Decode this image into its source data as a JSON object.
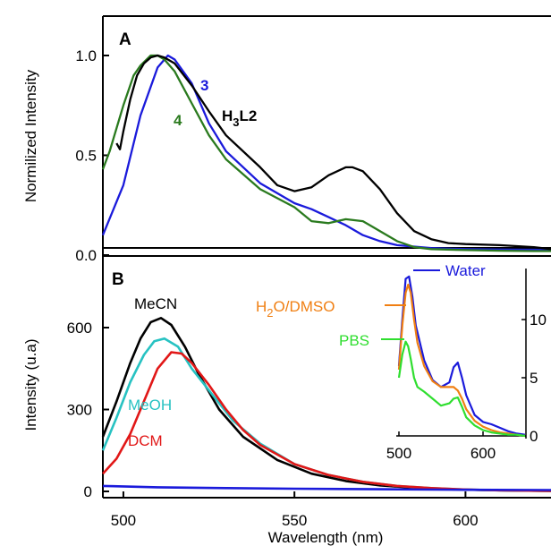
{
  "chart_data": [
    {
      "panel": "A",
      "type": "line",
      "xlabel": "",
      "ylabel": "Normilized Intensity",
      "xlim": [
        494,
        625
      ],
      "ylim": [
        0,
        1.1
      ],
      "yticks": [
        "0.0",
        "0.5",
        "1.0"
      ],
      "series": [
        {
          "name": "3",
          "color": "#1a1adb",
          "x": [
            494,
            500,
            505,
            510,
            513,
            515,
            520,
            525,
            530,
            540,
            550,
            555,
            560,
            565,
            570,
            575,
            580,
            590,
            600,
            610,
            620,
            625
          ],
          "y": [
            0.1,
            0.35,
            0.7,
            0.94,
            1.0,
            0.98,
            0.86,
            0.66,
            0.52,
            0.36,
            0.26,
            0.23,
            0.19,
            0.15,
            0.1,
            0.07,
            0.05,
            0.035,
            0.03,
            0.028,
            0.027,
            0.026
          ]
        },
        {
          "name": "4",
          "color": "#2a7a1e",
          "x": [
            494,
            496,
            500,
            503,
            505,
            508,
            510,
            512,
            515,
            520,
            525,
            530,
            540,
            550,
            555,
            560,
            565,
            570,
            575,
            580,
            585,
            590,
            600,
            610,
            620,
            625
          ],
          "y": [
            0.43,
            0.52,
            0.75,
            0.9,
            0.95,
            1.0,
            1.0,
            0.98,
            0.92,
            0.76,
            0.6,
            0.48,
            0.33,
            0.24,
            0.17,
            0.16,
            0.18,
            0.17,
            0.12,
            0.07,
            0.04,
            0.03,
            0.025,
            0.022,
            0.02,
            0.02
          ]
        },
        {
          "name": "H3L2",
          "color": "#000000",
          "x": [
            498,
            499,
            500,
            502,
            504,
            506,
            508,
            510,
            512,
            515,
            520,
            525,
            530,
            540,
            545,
            550,
            555,
            560,
            565,
            567,
            570,
            575,
            580,
            585,
            590,
            595,
            600,
            610,
            620,
            625
          ],
          "y": [
            0.56,
            0.53,
            0.62,
            0.78,
            0.9,
            0.96,
            0.99,
            1.0,
            0.99,
            0.96,
            0.85,
            0.72,
            0.6,
            0.44,
            0.35,
            0.32,
            0.34,
            0.4,
            0.44,
            0.44,
            0.42,
            0.33,
            0.21,
            0.12,
            0.08,
            0.06,
            0.055,
            0.05,
            0.04,
            0.03
          ]
        }
      ]
    },
    {
      "panel": "B",
      "type": "line",
      "xlabel": "Wavelength (nm)",
      "ylabel": "Intensity (u.a)",
      "xlim": [
        494,
        625
      ],
      "ylim": [
        -10,
        800
      ],
      "xticks": [
        "500",
        "550",
        "600"
      ],
      "yticks": [
        "0",
        "300",
        "600"
      ],
      "series": [
        {
          "name": "MeCN",
          "color": "#000000",
          "x": [
            494,
            498,
            502,
            505,
            508,
            511,
            514,
            518,
            522,
            528,
            535,
            545,
            555,
            565,
            575,
            585,
            595,
            605,
            615,
            625
          ],
          "y": [
            200,
            330,
            470,
            560,
            620,
            635,
            610,
            530,
            430,
            300,
            200,
            115,
            65,
            38,
            22,
            13,
            8,
            5,
            3,
            2
          ]
        },
        {
          "name": "MeOH",
          "color": "#27c2c2",
          "x": [
            494,
            498,
            502,
            506,
            509,
            512,
            516,
            520,
            525,
            532,
            540,
            550,
            560,
            570,
            580,
            590,
            600,
            610,
            625
          ],
          "y": [
            150,
            270,
            400,
            500,
            550,
            560,
            530,
            450,
            370,
            260,
            175,
            100,
            60,
            35,
            20,
            12,
            7,
            4,
            2
          ]
        },
        {
          "name": "DCM",
          "color": "#e11717",
          "x": [
            494,
            498,
            502,
            506,
            510,
            514,
            517,
            520,
            525,
            530,
            535,
            540,
            550,
            560,
            570,
            580,
            590,
            600,
            610,
            625
          ],
          "y": [
            65,
            120,
            210,
            330,
            450,
            510,
            505,
            470,
            390,
            300,
            225,
            170,
            100,
            60,
            35,
            20,
            12,
            7,
            4,
            2
          ]
        },
        {
          "name": "",
          "color": "#1a1adb",
          "x": [
            494,
            510,
            530,
            550,
            575,
            600,
            625
          ],
          "y": [
            20,
            15,
            12,
            10,
            8,
            6,
            5
          ]
        }
      ]
    },
    {
      "panel": "B-inset",
      "type": "line",
      "xlabel": "",
      "ylabel": "",
      "xlim": [
        495,
        650
      ],
      "ylim": [
        0,
        15
      ],
      "xticks": [
        "500",
        "600"
      ],
      "yticks": [
        "0",
        "5",
        "10"
      ],
      "series": [
        {
          "name": "Water",
          "color": "#1a1adb",
          "x": [
            500,
            504,
            508,
            512,
            516,
            520,
            530,
            540,
            550,
            560,
            565,
            570,
            575,
            580,
            590,
            600,
            610,
            620,
            630,
            640,
            650
          ],
          "y": [
            6,
            10,
            13.5,
            13.7,
            12,
            9.5,
            6.5,
            4.8,
            4.2,
            4.6,
            5.9,
            6.3,
            5,
            3.5,
            1.8,
            1.2,
            1,
            0.7,
            0.4,
            0.2,
            0.1
          ]
        },
        {
          "name": "H2O/DMSO",
          "color": "#f07f12",
          "x": [
            500,
            504,
            508,
            511,
            514,
            518,
            522,
            530,
            540,
            550,
            560,
            565,
            570,
            575,
            580,
            590,
            600,
            610,
            620,
            630,
            640,
            650
          ],
          "y": [
            5.7,
            9.5,
            12.3,
            13,
            12.3,
            10,
            8,
            6,
            4.7,
            4.2,
            4.2,
            4.2,
            3.9,
            3.2,
            2.3,
            1.3,
            0.8,
            0.5,
            0.3,
            0.2,
            0.1,
            0
          ]
        },
        {
          "name": "PBS",
          "color": "#2fde2f",
          "x": [
            500,
            504,
            508,
            511,
            514,
            518,
            522,
            530,
            540,
            550,
            560,
            565,
            570,
            575,
            580,
            590,
            600,
            610,
            620,
            630,
            640,
            650
          ],
          "y": [
            5,
            7,
            8.1,
            7.7,
            6.6,
            5,
            4.2,
            3.8,
            3.2,
            2.6,
            2.8,
            3.2,
            3.3,
            2.5,
            1.6,
            0.9,
            0.5,
            0.3,
            0.2,
            0.1,
            0.1,
            0
          ]
        }
      ]
    }
  ],
  "labels": {
    "panel_a": "A",
    "panel_b": "B",
    "series_3": "3",
    "series_4": "4",
    "h3l2_main": "H",
    "h3l2_sub": "3",
    "h3l2_rest": "L2",
    "mecn": "MeCN",
    "meoh": "MeOH",
    "dcm": "DCM",
    "water": "Water",
    "h2o_main": "H",
    "h2o_sub": "2",
    "h2o_rest": "O/DMSO",
    "pbs": "PBS"
  }
}
